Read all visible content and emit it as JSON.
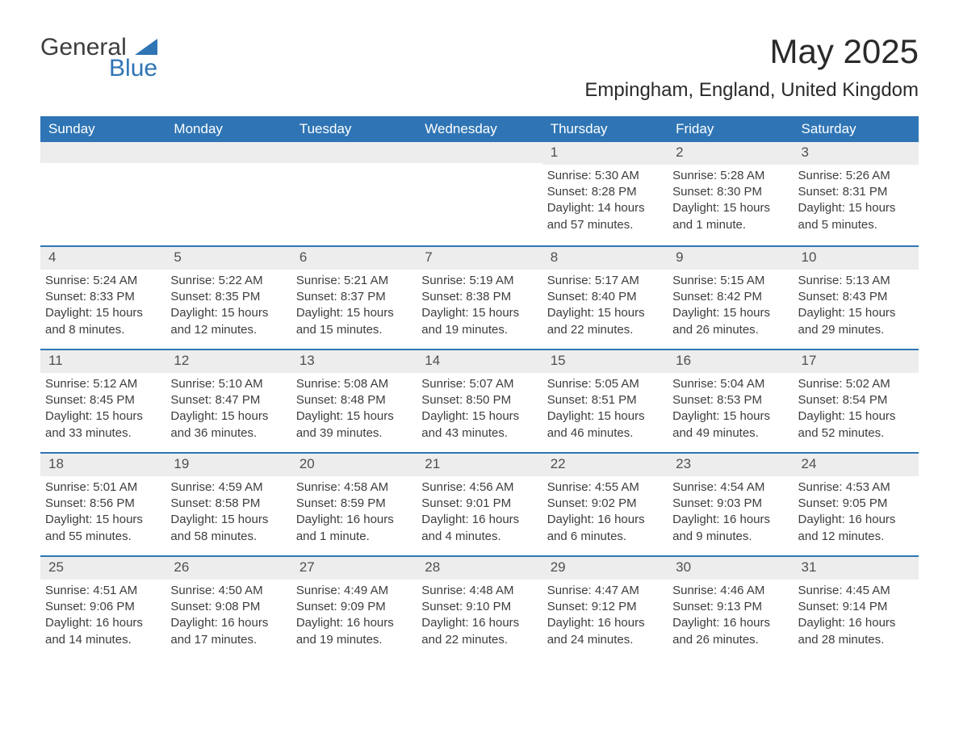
{
  "brand": {
    "word1": "General",
    "word2": "Blue"
  },
  "title": "May 2025",
  "location": "Empingham, England, United Kingdom",
  "colors": {
    "header_bg": "#2f75b5",
    "header_text": "#ffffff",
    "daynum_bg": "#ededed",
    "text": "#3d3d3d",
    "row_border": "#2f75b5"
  },
  "weekdays": [
    "Sunday",
    "Monday",
    "Tuesday",
    "Wednesday",
    "Thursday",
    "Friday",
    "Saturday"
  ],
  "weeks": [
    [
      null,
      null,
      null,
      null,
      {
        "n": "1",
        "sunrise": "5:30 AM",
        "sunset": "8:28 PM",
        "daylight": "14 hours and 57 minutes."
      },
      {
        "n": "2",
        "sunrise": "5:28 AM",
        "sunset": "8:30 PM",
        "daylight": "15 hours and 1 minute."
      },
      {
        "n": "3",
        "sunrise": "5:26 AM",
        "sunset": "8:31 PM",
        "daylight": "15 hours and 5 minutes."
      }
    ],
    [
      {
        "n": "4",
        "sunrise": "5:24 AM",
        "sunset": "8:33 PM",
        "daylight": "15 hours and 8 minutes."
      },
      {
        "n": "5",
        "sunrise": "5:22 AM",
        "sunset": "8:35 PM",
        "daylight": "15 hours and 12 minutes."
      },
      {
        "n": "6",
        "sunrise": "5:21 AM",
        "sunset": "8:37 PM",
        "daylight": "15 hours and 15 minutes."
      },
      {
        "n": "7",
        "sunrise": "5:19 AM",
        "sunset": "8:38 PM",
        "daylight": "15 hours and 19 minutes."
      },
      {
        "n": "8",
        "sunrise": "5:17 AM",
        "sunset": "8:40 PM",
        "daylight": "15 hours and 22 minutes."
      },
      {
        "n": "9",
        "sunrise": "5:15 AM",
        "sunset": "8:42 PM",
        "daylight": "15 hours and 26 minutes."
      },
      {
        "n": "10",
        "sunrise": "5:13 AM",
        "sunset": "8:43 PM",
        "daylight": "15 hours and 29 minutes."
      }
    ],
    [
      {
        "n": "11",
        "sunrise": "5:12 AM",
        "sunset": "8:45 PM",
        "daylight": "15 hours and 33 minutes."
      },
      {
        "n": "12",
        "sunrise": "5:10 AM",
        "sunset": "8:47 PM",
        "daylight": "15 hours and 36 minutes."
      },
      {
        "n": "13",
        "sunrise": "5:08 AM",
        "sunset": "8:48 PM",
        "daylight": "15 hours and 39 minutes."
      },
      {
        "n": "14",
        "sunrise": "5:07 AM",
        "sunset": "8:50 PM",
        "daylight": "15 hours and 43 minutes."
      },
      {
        "n": "15",
        "sunrise": "5:05 AM",
        "sunset": "8:51 PM",
        "daylight": "15 hours and 46 minutes."
      },
      {
        "n": "16",
        "sunrise": "5:04 AM",
        "sunset": "8:53 PM",
        "daylight": "15 hours and 49 minutes."
      },
      {
        "n": "17",
        "sunrise": "5:02 AM",
        "sunset": "8:54 PM",
        "daylight": "15 hours and 52 minutes."
      }
    ],
    [
      {
        "n": "18",
        "sunrise": "5:01 AM",
        "sunset": "8:56 PM",
        "daylight": "15 hours and 55 minutes."
      },
      {
        "n": "19",
        "sunrise": "4:59 AM",
        "sunset": "8:58 PM",
        "daylight": "15 hours and 58 minutes."
      },
      {
        "n": "20",
        "sunrise": "4:58 AM",
        "sunset": "8:59 PM",
        "daylight": "16 hours and 1 minute."
      },
      {
        "n": "21",
        "sunrise": "4:56 AM",
        "sunset": "9:01 PM",
        "daylight": "16 hours and 4 minutes."
      },
      {
        "n": "22",
        "sunrise": "4:55 AM",
        "sunset": "9:02 PM",
        "daylight": "16 hours and 6 minutes."
      },
      {
        "n": "23",
        "sunrise": "4:54 AM",
        "sunset": "9:03 PM",
        "daylight": "16 hours and 9 minutes."
      },
      {
        "n": "24",
        "sunrise": "4:53 AM",
        "sunset": "9:05 PM",
        "daylight": "16 hours and 12 minutes."
      }
    ],
    [
      {
        "n": "25",
        "sunrise": "4:51 AM",
        "sunset": "9:06 PM",
        "daylight": "16 hours and 14 minutes."
      },
      {
        "n": "26",
        "sunrise": "4:50 AM",
        "sunset": "9:08 PM",
        "daylight": "16 hours and 17 minutes."
      },
      {
        "n": "27",
        "sunrise": "4:49 AM",
        "sunset": "9:09 PM",
        "daylight": "16 hours and 19 minutes."
      },
      {
        "n": "28",
        "sunrise": "4:48 AM",
        "sunset": "9:10 PM",
        "daylight": "16 hours and 22 minutes."
      },
      {
        "n": "29",
        "sunrise": "4:47 AM",
        "sunset": "9:12 PM",
        "daylight": "16 hours and 24 minutes."
      },
      {
        "n": "30",
        "sunrise": "4:46 AM",
        "sunset": "9:13 PM",
        "daylight": "16 hours and 26 minutes."
      },
      {
        "n": "31",
        "sunrise": "4:45 AM",
        "sunset": "9:14 PM",
        "daylight": "16 hours and 28 minutes."
      }
    ]
  ],
  "labels": {
    "sunrise": "Sunrise: ",
    "sunset": "Sunset: ",
    "daylight": "Daylight: "
  }
}
